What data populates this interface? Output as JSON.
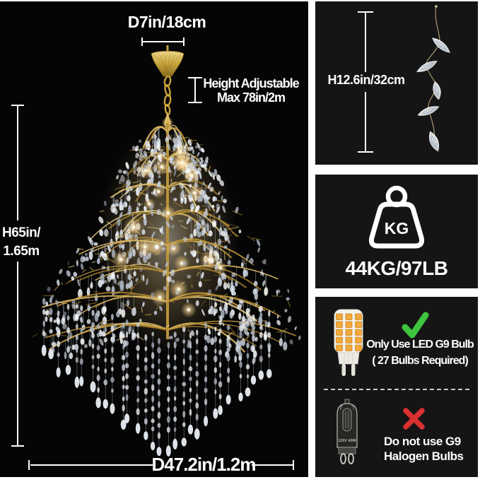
{
  "image_type": "chandelier-product-dimensions-infographic",
  "main": {
    "top_diameter": "D7in/18cm",
    "height_adjustable": {
      "line1": "Height Adjustable",
      "line2": "Max 78in/2m"
    },
    "fixture_height": {
      "line1": "H65in/",
      "line2": "1.65m"
    },
    "bottom_diameter": "D47.2in/1.2m"
  },
  "panels": {
    "crystal_strand": {
      "height": "H12.6in/32cm"
    },
    "weight": {
      "icon_label": "KG",
      "value": "44KG/97LB"
    },
    "led_bulb": {
      "line1": "Only Use LED G9 Bulb",
      "line2": "( 27 Bulbs Required)"
    },
    "halogen_bulb": {
      "line1": "Do not use G9",
      "line2": "Halogen Bulbs",
      "bulb_marking": "120V 40W"
    }
  },
  "icons": {
    "weight": "weight-kg-icon",
    "approved": "check-icon",
    "forbidden": "cross-icon",
    "led": "led-g9-bulb-icon",
    "halogen": "halogen-g9-bulb-icon"
  },
  "colors": {
    "page_background": "#ffffff",
    "photo_background": "#050505",
    "panel_background": "#151515",
    "text": "#ffffff",
    "check_green": "#3ec43e",
    "cross_red": "#d93030",
    "gold": "#c49a3c"
  }
}
